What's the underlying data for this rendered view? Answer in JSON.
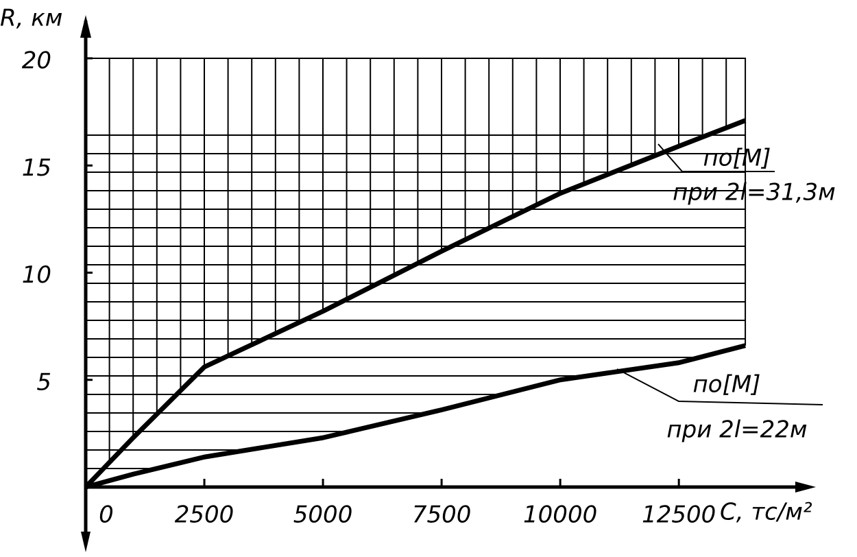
{
  "chart_data": {
    "type": "line",
    "x_label": "C, тс/м²",
    "y_label": "R, км",
    "x": [
      0,
      1000,
      2500,
      5000,
      7500,
      10000,
      12500,
      13900
    ],
    "series": [
      {
        "name": "по[М]",
        "annotation": "при 2l=31,3м",
        "color": "#000000",
        "values": [
          0,
          2.3,
          5.6,
          8.2,
          11.0,
          13.7,
          15.9,
          17.1
        ]
      },
      {
        "name": "по[М]",
        "annotation": "при 2l=22м",
        "color": "#000000",
        "values": [
          0,
          0.6,
          1.4,
          2.3,
          3.6,
          5.0,
          5.8,
          6.6
        ]
      }
    ],
    "xlim": [
      0,
      14000
    ],
    "xticks": [
      0,
      2500,
      5000,
      7500,
      10000,
      12500
    ],
    "ylim": [
      0,
      20
    ],
    "yticks": [
      5,
      10,
      15,
      20
    ]
  }
}
